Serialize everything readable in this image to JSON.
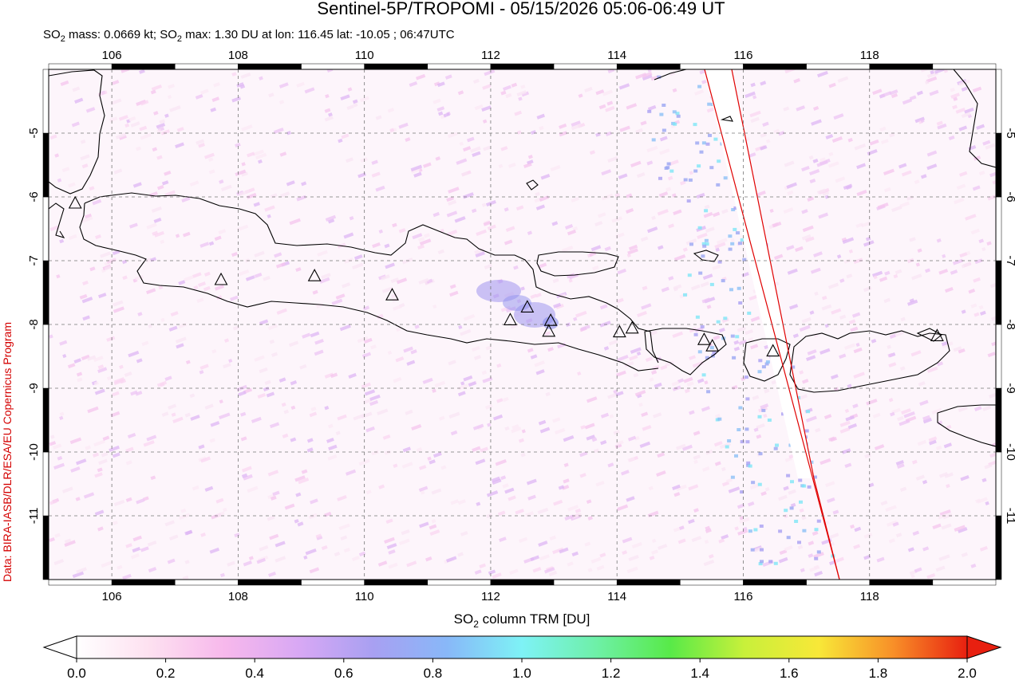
{
  "header": {
    "title": "Sentinel-5P/TROPOMI - 05/15/2026 05:06-06:49 UT",
    "subtitle_parts": {
      "mass_prefix": "SO",
      "mass_sub": "2",
      "mass_text": " mass: 0.0669 kt; SO",
      "max_sub": "2",
      "max_text": " max: 1.30 DU at lon: 116.45 lat: -10.05 ; 06:47UTC"
    }
  },
  "credit": "Data: BIRA-IASB/DLR/ESA/EU Copernicus Program",
  "map": {
    "lon_range": [
      105,
      120
    ],
    "lat_range": [
      -12,
      -4
    ],
    "lon_ticks": [
      "106",
      "108",
      "110",
      "112",
      "114",
      "116",
      "118"
    ],
    "lat_ticks": [
      "-5",
      "-6",
      "-7",
      "-8",
      "-9",
      "-10",
      "-11"
    ],
    "volcano_markers": [
      {
        "lon": 105.42,
        "lat": -6.1
      },
      {
        "lon": 107.73,
        "lat": -7.3
      },
      {
        "lon": 109.21,
        "lat": -7.24
      },
      {
        "lon": 110.44,
        "lat": -7.54
      },
      {
        "lon": 112.31,
        "lat": -7.93
      },
      {
        "lon": 112.58,
        "lat": -7.73
      },
      {
        "lon": 112.95,
        "lat": -7.94
      },
      {
        "lon": 112.92,
        "lat": -8.11
      },
      {
        "lon": 114.04,
        "lat": -8.12
      },
      {
        "lon": 114.24,
        "lat": -8.06
      },
      {
        "lon": 115.38,
        "lat": -8.24
      },
      {
        "lon": 115.51,
        "lat": -8.34
      },
      {
        "lon": 116.47,
        "lat": -8.42
      },
      {
        "lon": 119.07,
        "lat": -8.18
      }
    ],
    "max_location": {
      "lon": 116.45,
      "lat": -10.05
    },
    "colors": {
      "coast": "#000000",
      "grid": "#777777",
      "swath_edge": "#e00000"
    }
  },
  "colorbar": {
    "label_main": "SO",
    "label_sub": "2",
    "label_rest": " column TRM [DU]",
    "range": [
      0.0,
      2.0
    ],
    "tick_labels": [
      "0.0",
      "0.2",
      "0.4",
      "0.6",
      "0.8",
      "1.0",
      "1.2",
      "1.4",
      "1.6",
      "1.8",
      "2.0"
    ],
    "stops": [
      "#ffffff",
      "#fde0f0",
      "#f7b8ec",
      "#d8a8f4",
      "#a8a0f2",
      "#88b8f8",
      "#7ef2f6",
      "#6ef0a8",
      "#58ea48",
      "#c8f03a",
      "#f8e838",
      "#f89028",
      "#e82010"
    ]
  }
}
